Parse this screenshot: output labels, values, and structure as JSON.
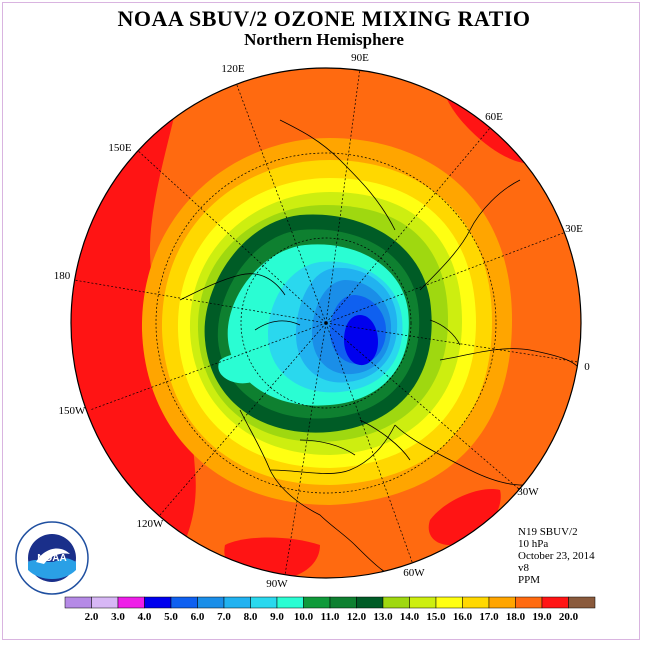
{
  "title": "NOAA SBUV/2 OZONE MIXING RATIO",
  "subtitle": "Northern Hemisphere",
  "longitude_labels": [
    "90E",
    "60E",
    "30E",
    "0",
    "30W",
    "60W",
    "90W",
    "120W",
    "150W",
    "180",
    "150E",
    "120E"
  ],
  "info": {
    "instrument": "N19 SBUV/2",
    "level": "10 hPa",
    "date": "October 23, 2014",
    "version": "v8",
    "units": "PPM"
  },
  "logo": {
    "text": "NOAA",
    "ring_text": "NATIONAL OCEANIC AND ATMOSPHERIC ADMINISTRATION · U.S. DEPARTMENT OF COMMERCE"
  },
  "colorbar": {
    "ticks": [
      "2.0",
      "3.0",
      "4.0",
      "5.0",
      "6.0",
      "7.0",
      "8.0",
      "9.0",
      "10.0",
      "11.0",
      "12.0",
      "13.0",
      "14.0",
      "15.0",
      "16.0",
      "17.0",
      "18.0",
      "19.0",
      "20.0"
    ],
    "colors": [
      "#b58ae6",
      "#d7b7f5",
      "#ee1ee8",
      "#0000ee",
      "#0f60f0",
      "#1a8ee8",
      "#21b2f0",
      "#2ad8ee",
      "#2afdd3",
      "#0f9a3a",
      "#0e8030",
      "#005c26",
      "#9fd810",
      "#cdee10",
      "#ffff12",
      "#ffd800",
      "#ffa500",
      "#ff6a10",
      "#ff1414",
      "#8a5a3c"
    ]
  },
  "map_colors": {
    "boundary": "#000000",
    "graticule": "#000000"
  }
}
